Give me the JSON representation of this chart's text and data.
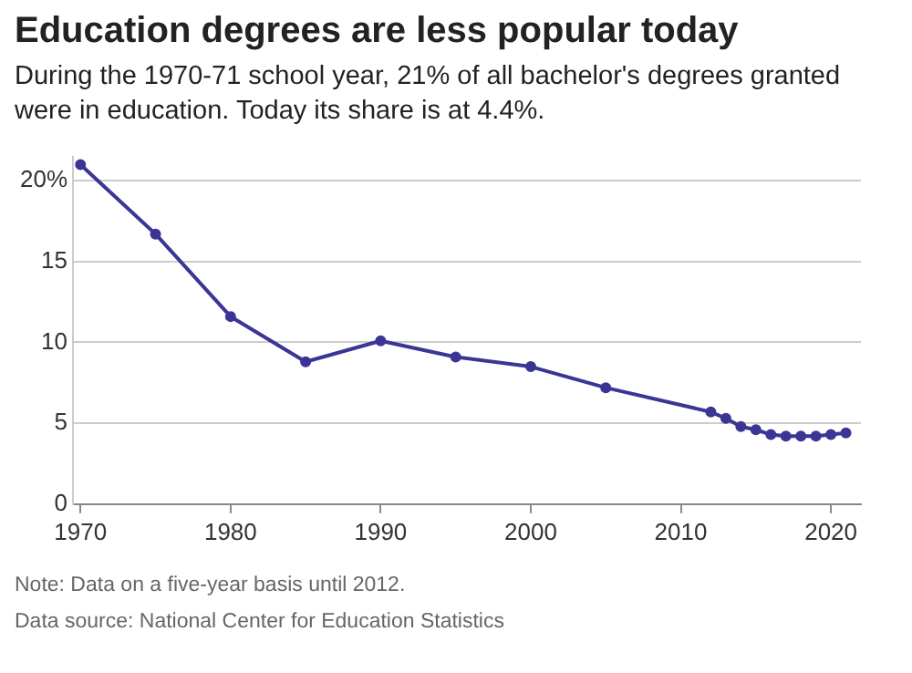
{
  "chart_data": {
    "type": "line",
    "title": "Education degrees are less popular today",
    "subtitle": "During the 1970-71 school year, 21% of all bachelor's degrees granted were in education. Today its share is at 4.4%.",
    "x": [
      1970,
      1975,
      1980,
      1985,
      1990,
      1995,
      2000,
      2005,
      2012,
      2013,
      2014,
      2015,
      2016,
      2017,
      2018,
      2019,
      2020,
      2021
    ],
    "series": [
      {
        "color": "#3b3596",
        "values": [
          21,
          16.7,
          11.6,
          8.8,
          10.1,
          9.1,
          8.5,
          7.2,
          5.7,
          5.3,
          4.8,
          4.6,
          4.3,
          4.2,
          4.2,
          4.2,
          4.3,
          4.4
        ]
      }
    ],
    "xlim": [
      1969.5,
      2022
    ],
    "xticks": [
      1970,
      1980,
      1990,
      2000,
      2010,
      2020
    ],
    "ylim": [
      0,
      21.5
    ],
    "yticks": [
      0,
      5,
      10,
      15,
      {
        "value": 20,
        "label": "20%"
      }
    ],
    "grid": "y",
    "marker": "circle",
    "line_style": "solid",
    "legend": false,
    "annotations": [
      "Note: Data on a five-year basis until 2012.",
      "Data source: National Center for Education Statistics"
    ]
  }
}
